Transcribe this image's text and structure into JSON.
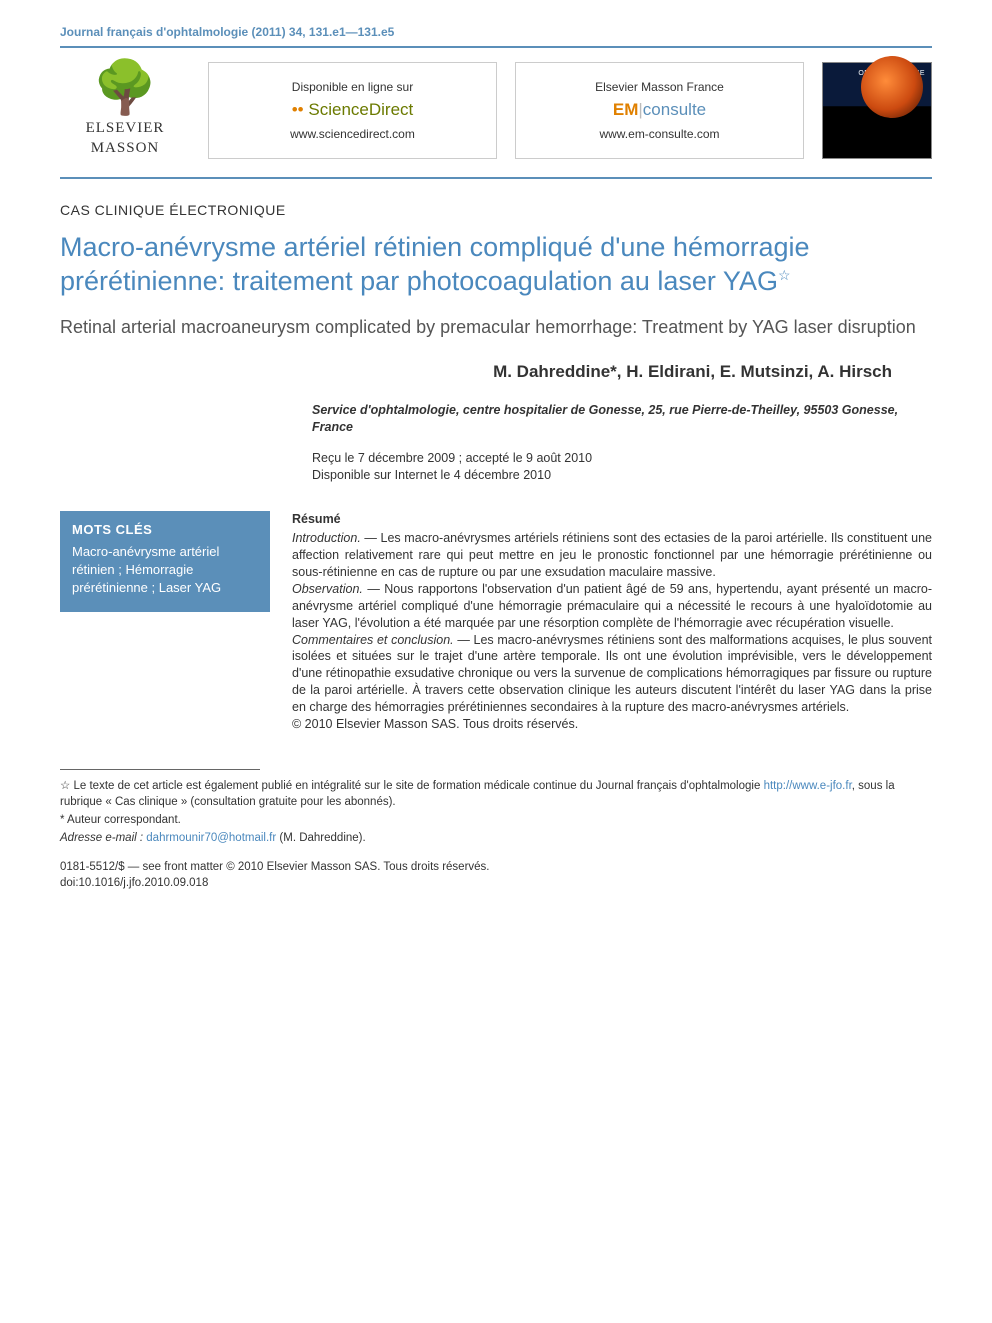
{
  "journal_ref": "Journal français d'ophtalmologie (2011) 34, 131.e1—131.e5",
  "header": {
    "publisher": {
      "name_line1": "ELSEVIER",
      "name_line2": "MASSON"
    },
    "box1": {
      "top": "Disponible en ligne sur",
      "brand_prefix": "••",
      "brand": "ScienceDirect",
      "url": "www.sciencedirect.com"
    },
    "box2": {
      "top": "Elsevier Masson France",
      "brand_prefix": "EM",
      "brand_rest": "consulte",
      "url": "www.em-consulte.com"
    },
    "cover_title": "OPHTALMOLOGIE"
  },
  "article_type": "CAS CLINIQUE ÉLECTRONIQUE",
  "title_fr": "Macro-anévrysme artériel rétinien compliqué d'une hémorragie prérétinienne: traitement par photocoagulation au laser YAG",
  "title_star": "☆",
  "title_en": "Retinal arterial macroaneurysm complicated by premacular hemorrhage: Treatment by YAG laser disruption",
  "authors": "M. Dahreddine*, H. Eldirani, E. Mutsinzi, A. Hirsch",
  "affiliation": "Service d'ophtalmologie, centre hospitalier de Gonesse, 25, rue Pierre-de-Theilley, 95503 Gonesse, France",
  "dates_line1": "Reçu le 7 décembre 2009 ; accepté le 9 août 2010",
  "dates_line2": "Disponible sur Internet le 4 décembre 2010",
  "keywords": {
    "heading": "MOTS CLÉS",
    "body": "Macro-anévrysme artériel rétinien ; Hémorragie prérétinienne ; Laser YAG"
  },
  "abstract": {
    "heading": "Résumé",
    "sections": [
      {
        "label": "Introduction. — ",
        "text": "Les macro-anévrysmes artériels rétiniens sont des ectasies de la paroi artérielle. Ils constituent une affection relativement rare qui peut mettre en jeu le pronostic fonctionnel par une hémorragie prérétinienne ou sous-rétinienne en cas de rupture ou par une exsudation maculaire massive."
      },
      {
        "label": "Observation. — ",
        "text": "Nous rapportons l'observation d'un patient âgé de 59 ans, hypertendu, ayant présenté un macro-anévrysme artériel compliqué d'une hémorragie prémaculaire qui a nécessité le recours à une hyaloïdotomie au laser YAG, l'évolution a été marquée par une résorption complète de l'hémorragie avec récupération visuelle."
      },
      {
        "label": "Commentaires et conclusion. — ",
        "text": "Les macro-anévrysmes rétiniens sont des malformations acquises, le plus souvent isolées et situées sur le trajet d'une artère temporale. Ils ont une évolution imprévisible, vers le développement d'une rétinopathie exsudative chronique ou vers la survenue de complications hémorragiques par fissure ou rupture de la paroi artérielle. À travers cette observation clinique les auteurs discutent l'intérêt du laser YAG dans la prise en charge des hémorragies prérétiniennes secondaires à la rupture des macro-anévrysmes artériels."
      }
    ],
    "copyright": "© 2010 Elsevier Masson SAS. Tous droits réservés."
  },
  "footnotes": {
    "star_text_pre": "☆ Le texte de cet article est également publié en intégralité sur le site de formation médicale continue du Journal français d'ophtalmologie ",
    "star_link": "http://www.e-jfo.fr",
    "star_text_post": ", sous la rubrique « Cas clinique » (consultation gratuite pour les abonnés).",
    "corr": "* Auteur correspondant.",
    "email_label": "Adresse e-mail : ",
    "email": "dahrmounir70@hotmail.fr",
    "email_suffix": " (M. Dahreddine)."
  },
  "copyright_block": {
    "line1": "0181-5512/$ — see front matter © 2010 Elsevier Masson SAS. Tous droits réservés.",
    "line2": "doi:10.1016/j.jfo.2010.09.018"
  }
}
